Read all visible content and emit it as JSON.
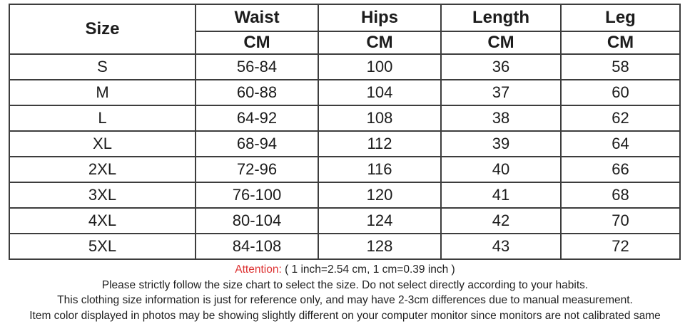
{
  "page": {
    "background": "#ffffff"
  },
  "colors": {
    "border": "#3d3d3d",
    "text": "#1c1c1c",
    "attention_red": "#dd3333"
  },
  "size_table": {
    "header": {
      "size_label": "Size",
      "measures": [
        "Waist",
        "Hips",
        "Length",
        "Leg"
      ],
      "units": [
        "CM",
        "CM",
        "CM",
        "CM"
      ]
    },
    "rows": [
      {
        "size": "S",
        "waist": "56-84",
        "hips": "100",
        "length": "36",
        "leg": "58"
      },
      {
        "size": "M",
        "waist": "60-88",
        "hips": "104",
        "length": "37",
        "leg": "60"
      },
      {
        "size": "L",
        "waist": "64-92",
        "hips": "108",
        "length": "38",
        "leg": "62"
      },
      {
        "size": "XL",
        "waist": "68-94",
        "hips": "112",
        "length": "39",
        "leg": "64"
      },
      {
        "size": "2XL",
        "waist": "72-96",
        "hips": "116",
        "length": "40",
        "leg": "66"
      },
      {
        "size": "3XL",
        "waist": "76-100",
        "hips": "120",
        "length": "41",
        "leg": "68"
      },
      {
        "size": "4XL",
        "waist": "80-104",
        "hips": "124",
        "length": "42",
        "leg": "70"
      },
      {
        "size": "5XL",
        "waist": "84-108",
        "hips": "128",
        "length": "43",
        "leg": "72"
      }
    ]
  },
  "notes": {
    "attention_label": "Attention:",
    "attention_text": " ( 1 inch=2.54 cm, 1 cm=0.39 inch )",
    "lines": [
      "Please strictly follow the size chart to select the size. Do not select directly according to your habits.",
      "This clothing size information is just for reference only, and may have 2-3cm differences due to manual measurement.",
      "Item color displayed in photos may be showing slightly different on your computer monitor since monitors are not calibrated same"
    ]
  },
  "chart_data": {
    "type": "table",
    "title": "Clothing size chart",
    "columns": [
      "Size",
      "Waist (CM)",
      "Hips (CM)",
      "Length (CM)",
      "Leg (CM)"
    ],
    "rows": [
      [
        "S",
        "56-84",
        "100",
        "36",
        "58"
      ],
      [
        "M",
        "60-88",
        "104",
        "37",
        "60"
      ],
      [
        "L",
        "64-92",
        "108",
        "38",
        "62"
      ],
      [
        "XL",
        "68-94",
        "112",
        "39",
        "64"
      ],
      [
        "2XL",
        "72-96",
        "116",
        "40",
        "66"
      ],
      [
        "3XL",
        "76-100",
        "120",
        "41",
        "68"
      ],
      [
        "4XL",
        "80-104",
        "124",
        "42",
        "70"
      ],
      [
        "5XL",
        "84-108",
        "128",
        "43",
        "72"
      ]
    ],
    "notes": [
      "Attention: ( 1 inch=2.54 cm, 1 cm=0.39 inch )",
      "Please strictly follow the size chart to select the size. Do not select directly according to your habits.",
      "This clothing size information is just for reference only, and may have 2-3cm differences due to manual measurement.",
      "Item color displayed in photos may be showing slightly different on your computer monitor since monitors are not calibrated same"
    ],
    "layout": {
      "header_rows": 2,
      "grid": true,
      "unit_row": "CM"
    }
  }
}
